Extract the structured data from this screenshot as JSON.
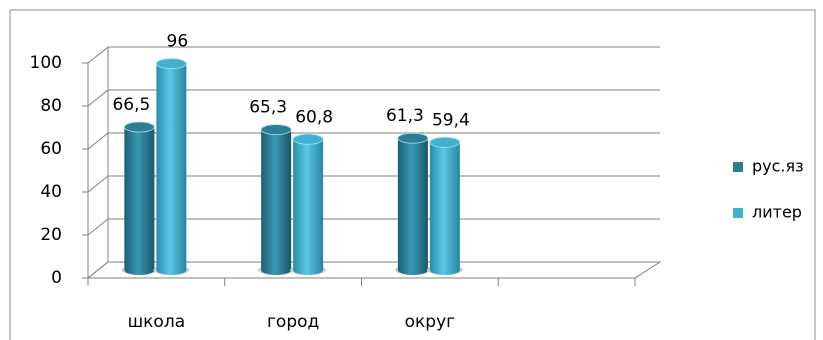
{
  "chart_data": {
    "type": "bar3d",
    "categories": [
      "школа",
      "город",
      "округ",
      null
    ],
    "series": [
      {
        "name": "рус.яз",
        "color": "#2b7d96",
        "values": [
          66.5,
          65.3,
          61.3,
          null
        ],
        "value_labels": [
          "66,5",
          "65,3",
          "61,3",
          null
        ]
      },
      {
        "name": "литер",
        "color": "#3fb2d2",
        "values": [
          96,
          60.8,
          59.4,
          null
        ],
        "value_labels": [
          "96",
          "60,8",
          "59,4",
          null
        ]
      }
    ],
    "ylim": [
      0,
      100
    ],
    "yticks": [
      0,
      20,
      40,
      60,
      80,
      100
    ],
    "grid": true,
    "legend": "right"
  }
}
